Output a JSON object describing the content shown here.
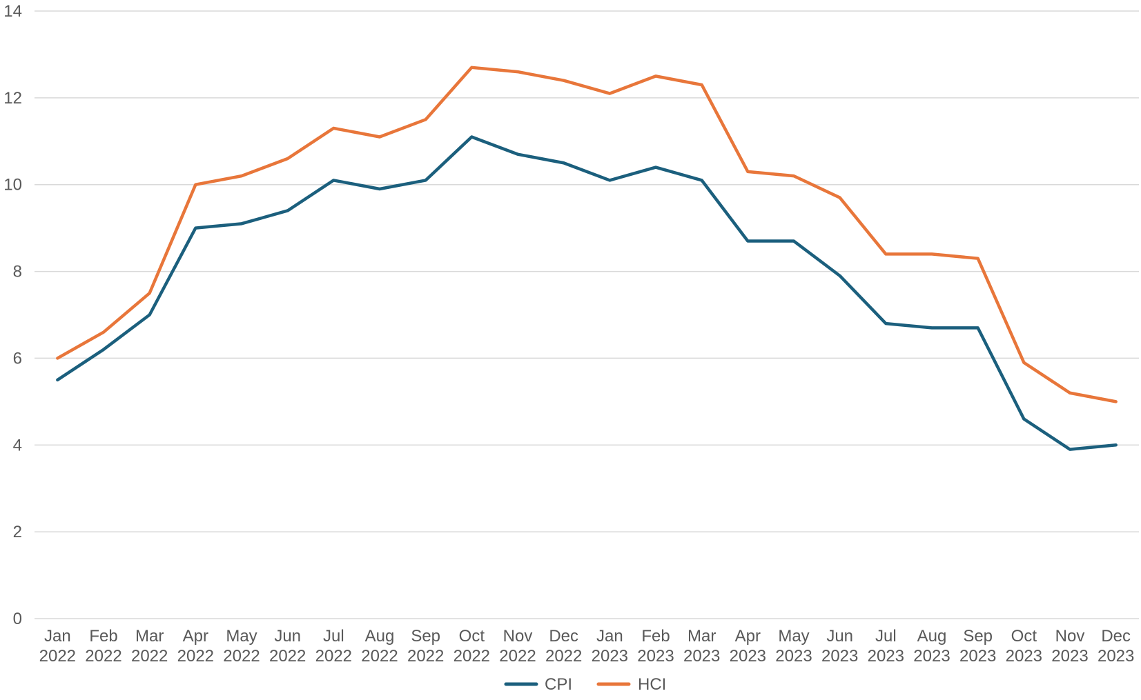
{
  "chart_data": {
    "type": "line",
    "title": "",
    "xlabel": "",
    "ylabel": "",
    "categories": [
      [
        "Jan",
        "2022"
      ],
      [
        "Feb",
        "2022"
      ],
      [
        "Mar",
        "2022"
      ],
      [
        "Apr",
        "2022"
      ],
      [
        "May",
        "2022"
      ],
      [
        "Jun",
        "2022"
      ],
      [
        "Jul",
        "2022"
      ],
      [
        "Aug",
        "2022"
      ],
      [
        "Sep",
        "2022"
      ],
      [
        "Oct",
        "2022"
      ],
      [
        "Nov",
        "2022"
      ],
      [
        "Dec",
        "2022"
      ],
      [
        "Jan",
        "2023"
      ],
      [
        "Feb",
        "2023"
      ],
      [
        "Mar",
        "2023"
      ],
      [
        "Apr",
        "2023"
      ],
      [
        "May",
        "2023"
      ],
      [
        "Jun",
        "2023"
      ],
      [
        "Jul",
        "2023"
      ],
      [
        "Aug",
        "2023"
      ],
      [
        "Sep",
        "2023"
      ],
      [
        "Oct",
        "2023"
      ],
      [
        "Nov",
        "2023"
      ],
      [
        "Dec",
        "2023"
      ]
    ],
    "ylim": [
      0,
      14
    ],
    "yticks": [
      0,
      2,
      4,
      6,
      8,
      10,
      12,
      14
    ],
    "grid": true,
    "legend_position": "bottom",
    "series": [
      {
        "name": "CPI",
        "color": "#1b5f7d",
        "values": [
          5.5,
          6.2,
          7.0,
          9.0,
          9.1,
          9.4,
          10.1,
          9.9,
          10.1,
          11.1,
          10.7,
          10.5,
          10.1,
          10.4,
          10.1,
          8.7,
          8.7,
          7.9,
          6.8,
          6.7,
          6.7,
          4.6,
          3.9,
          4.0
        ]
      },
      {
        "name": "HCI",
        "color": "#e8763a",
        "values": [
          6.0,
          6.6,
          7.5,
          10.0,
          10.2,
          10.6,
          11.3,
          11.1,
          11.5,
          12.7,
          12.6,
          12.4,
          12.1,
          12.5,
          12.3,
          10.3,
          10.2,
          9.7,
          8.4,
          8.4,
          8.3,
          5.9,
          5.2,
          5.0
        ]
      }
    ]
  }
}
